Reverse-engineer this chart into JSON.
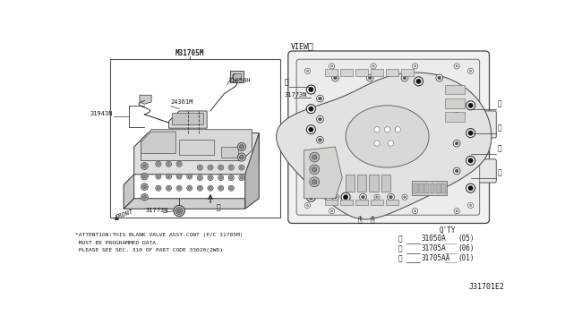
{
  "bg_color": "#ffffff",
  "diagram_id": "J31701E2",
  "left_label_top": "M31705M",
  "bottom_text": [
    "*ATTENTION:THIS BLANK VALVE ASSY-CONT (P/C 31705M)",
    " MUST BE PROGRAMMED DATA.",
    " PLEASE SEE SEC. 310 OF PART CODE 33020(2WD)"
  ],
  "legend": [
    {
      "sym": "a",
      "part": "31050A",
      "qty": "(05)"
    },
    {
      "sym": "b",
      "part": "31705A",
      "qty": "(06)"
    },
    {
      "sym": "c",
      "part": "31705AA",
      "qty": "(01)"
    }
  ],
  "font_color": "#1a1a1a",
  "line_color": "#333333",
  "light_gray": "#c8c8c8",
  "mid_gray": "#888888",
  "dark_gray": "#555555"
}
